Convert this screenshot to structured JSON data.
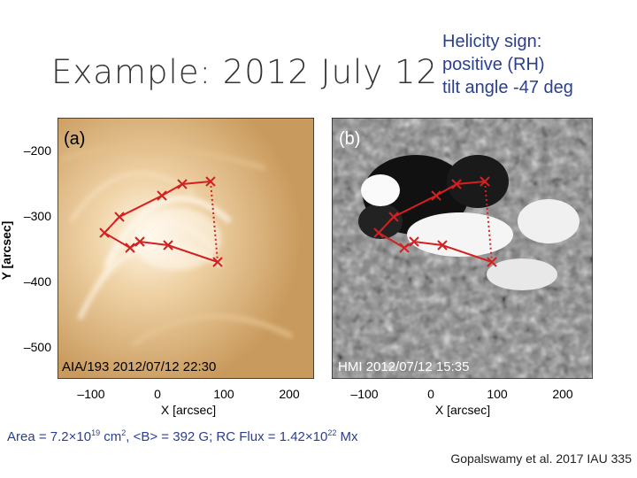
{
  "slide": {
    "title": "Example: 2012 July 12",
    "helicity": [
      "Helicity sign:",
      "positive (RH)",
      "tilt angle -47 deg"
    ],
    "area_label": "Area = ",
    "area_value": "7.2×10",
    "area_exp": "19",
    "area_units": " cm",
    "area_units_exp": "2",
    "b_text": ", <B> = 392 G; RC Flux = 1.42×10",
    "flux_exp": "22",
    "flux_units": " Mx",
    "credit": "Gopalswamy et al. 2017 IAU 335"
  },
  "panels": {
    "y_label": "Y [arcsec]",
    "x_label": "X [arcsec]",
    "y_ticks": [
      "–200",
      "–300",
      "–400",
      "–500"
    ],
    "x_ticks": [
      "–100",
      "0",
      "100",
      "200"
    ],
    "left": {
      "tag": "(a)",
      "caption": "AIA/193 2012/07/12 22:30"
    },
    "right": {
      "tag": "(b)",
      "caption": "HMI 2012/07/12 15:35"
    }
  },
  "colors": {
    "marker": "#d42020",
    "helicity_text": "#2b3f8c",
    "aia_bg": "#d9b37b",
    "hmi_bg": "#7d7d7d"
  }
}
